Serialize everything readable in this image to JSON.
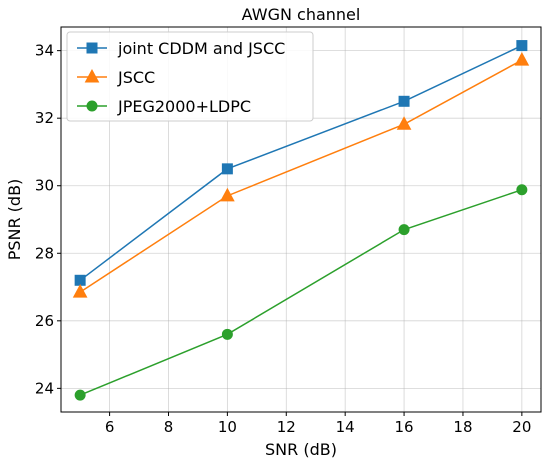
{
  "chart_data": {
    "type": "line",
    "title": "AWGN channel",
    "xlabel": "SNR (dB)",
    "ylabel": "PSNR (dB)",
    "x": [
      5,
      10,
      16,
      20
    ],
    "xlim": [
      4.35,
      20.65
    ],
    "ylim": [
      23.3,
      34.7
    ],
    "xticks": [
      6,
      8,
      10,
      12,
      14,
      16,
      18,
      20
    ],
    "yticks": [
      24,
      26,
      28,
      30,
      32,
      34
    ],
    "grid": true,
    "legend_position": "top-left",
    "series": [
      {
        "name": "joint CDDM and JSCC",
        "values": [
          27.2,
          30.5,
          32.5,
          34.15
        ],
        "color": "#1f77b4",
        "marker": "square"
      },
      {
        "name": "JSCC",
        "values": [
          26.85,
          29.7,
          31.82,
          33.72
        ],
        "color": "#ff7f0e",
        "marker": "triangle"
      },
      {
        "name": "JPEG2000+LDPC",
        "values": [
          23.8,
          25.6,
          28.7,
          29.88
        ],
        "color": "#2ca02c",
        "marker": "circle"
      }
    ]
  }
}
